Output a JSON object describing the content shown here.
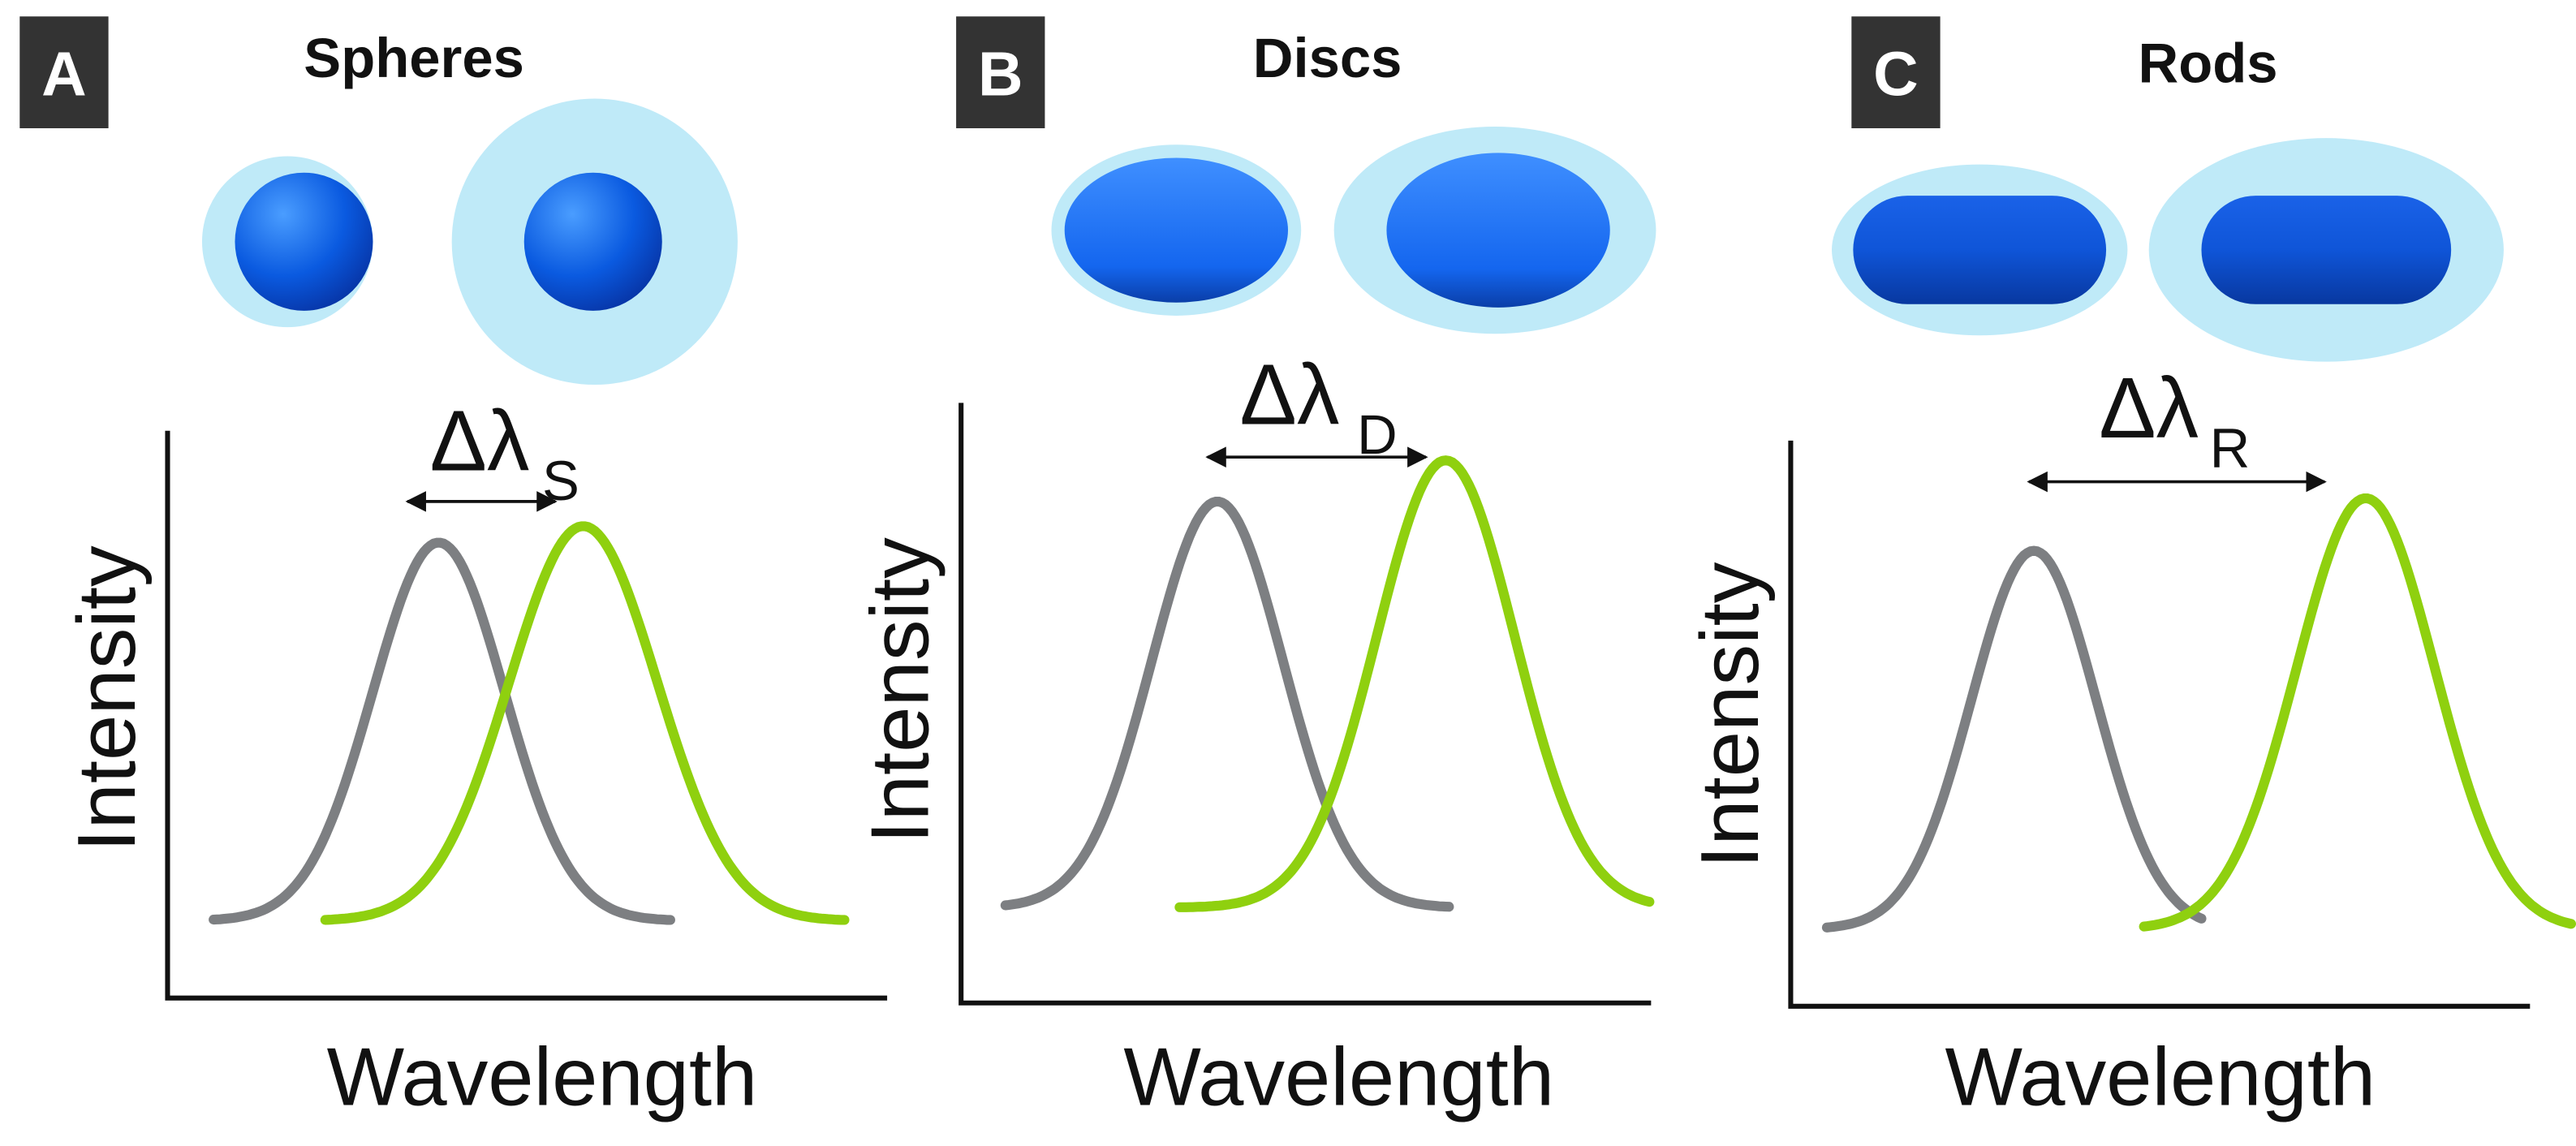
{
  "panels": [
    {
      "label": "A",
      "title": "Spheres",
      "delta": "Δλ",
      "delta_sub": "S",
      "y_axis": "Intensity",
      "x_axis": "Wavelength"
    },
    {
      "label": "B",
      "title": "Discs",
      "delta": "Δλ",
      "delta_sub": "D",
      "y_axis": "Intensity",
      "x_axis": "Wavelength"
    },
    {
      "label": "C",
      "title": "Rods",
      "delta": "Δλ",
      "delta_sub": "R",
      "y_axis": "Intensity",
      "x_axis": "Wavelength"
    }
  ]
}
